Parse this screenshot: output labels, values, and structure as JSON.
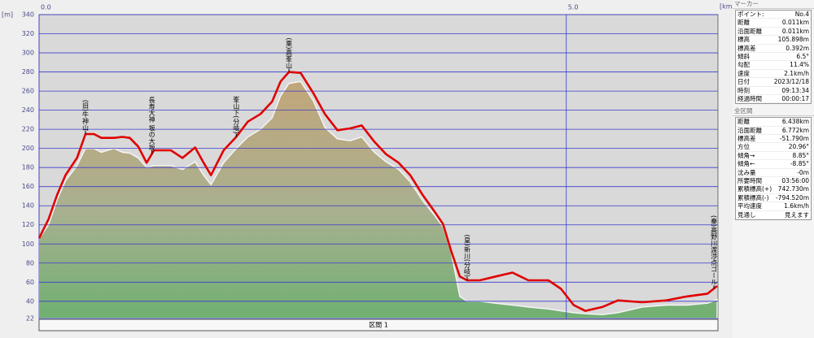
{
  "chart_data": {
    "type": "profile",
    "y_unit": "[m]",
    "x_unit": "[km]",
    "xlim": [
      0,
      6.438
    ],
    "ylim": [
      22,
      340
    ],
    "xticks": [
      {
        "value": 0,
        "label": "0.0"
      },
      {
        "value": 5,
        "label": "5.0"
      }
    ],
    "yticks": [
      22,
      40,
      60,
      80,
      100,
      120,
      140,
      160,
      180,
      200,
      220,
      240,
      260,
      280,
      300,
      320,
      340
    ],
    "grid": true,
    "x": [
      0,
      0.09,
      0.17,
      0.25,
      0.36,
      0.44,
      0.52,
      0.59,
      0.71,
      0.79,
      0.86,
      0.94,
      1.02,
      1.09,
      1.25,
      1.36,
      1.48,
      1.56,
      1.63,
      1.75,
      1.87,
      1.98,
      2.1,
      2.21,
      2.29,
      2.37,
      2.48,
      2.6,
      2.71,
      2.83,
      2.95,
      3.06,
      3.18,
      3.29,
      3.41,
      3.52,
      3.64,
      3.75,
      3.83,
      3.91,
      3.99,
      4.06,
      4.18,
      4.33,
      4.49,
      4.64,
      4.83,
      4.95,
      5.07,
      5.18,
      5.34,
      5.49,
      5.72,
      5.95,
      6.14,
      6.34,
      6.43
    ],
    "series": [
      {
        "color": "#e00000",
        "style": "line",
        "values": [
          106,
          126,
          151,
          172,
          190,
          215,
          215,
          211,
          211,
          212,
          211,
          202,
          185,
          198,
          198,
          190,
          201,
          185,
          172,
          198,
          212,
          228,
          236,
          249,
          270,
          280,
          279,
          258,
          236,
          219,
          221,
          224,
          207,
          194,
          185,
          172,
          151,
          134,
          121,
          92,
          66,
          62,
          62,
          66,
          70,
          62,
          62,
          53,
          36,
          30,
          34,
          41,
          39,
          41,
          45,
          48,
          56
        ]
      },
      {
        "color": "#b8a888",
        "style": "area",
        "values": [
          106,
          120,
          146,
          166,
          182,
          200,
          200,
          196,
          200,
          196,
          195,
          190,
          180,
          182,
          182,
          178,
          186,
          172,
          162,
          185,
          200,
          212,
          220,
          232,
          255,
          268,
          270,
          250,
          222,
          210,
          208,
          212,
          196,
          186,
          178,
          165,
          145,
          130,
          118,
          90,
          45,
          40,
          40,
          38,
          36,
          34,
          32,
          30,
          28,
          27,
          26,
          28,
          34,
          36,
          36,
          38,
          42
        ]
      }
    ],
    "annotations": [
      {
        "x": 0.44,
        "text": "(旧)牛神山"
      },
      {
        "x": 1.07,
        "text": "長寿大神 坂の大坂"
      },
      {
        "x": 1.87,
        "text": "峯山下(分岐)"
      },
      {
        "x": 2.37,
        "text": "(栗)高峯山"
      },
      {
        "x": 4.06,
        "text": "(皇)新川(分岐)"
      },
      {
        "x": 6.4,
        "text": "(秦)高野川渡渉点ゴール"
      }
    ],
    "segment_label": "区間 1"
  },
  "panel": {
    "marker": {
      "title": "マーカー",
      "rows": [
        [
          "ポイント:",
          "No.4"
        ],
        [
          "距離",
          "0.011km"
        ],
        [
          "沿面距離",
          "0.011km"
        ],
        [
          "標高",
          "105.898m"
        ],
        [
          "標高差",
          "0.392m"
        ],
        [
          "傾斜",
          "6.5°"
        ],
        [
          "勾配",
          "11.4%"
        ],
        [
          "速度",
          "2.1km/h"
        ],
        [
          "日付",
          "2023/12/18"
        ],
        [
          "時刻",
          "09:13:34"
        ],
        [
          "経過時間",
          "00:00:17"
        ]
      ]
    },
    "total": {
      "title": "全区間",
      "rows": [
        [
          "距離",
          "6.438km"
        ],
        [
          "沿面距離",
          "6.772km"
        ],
        [
          "標高差",
          "-51.790m"
        ],
        [
          "方位",
          "20.96°"
        ],
        [
          "傾角→",
          "8.85°"
        ],
        [
          "傾角←",
          "-8.85°"
        ],
        [
          "沈み量",
          "-0m"
        ],
        [
          "所要時間",
          "03:56:00"
        ],
        [
          "累積標高(+)",
          "742.730m"
        ],
        [
          "累積標高(-)",
          "-794.520m"
        ],
        [
          "平均速度",
          "1.6km/h"
        ],
        [
          "見通し",
          "見えます"
        ]
      ]
    }
  }
}
